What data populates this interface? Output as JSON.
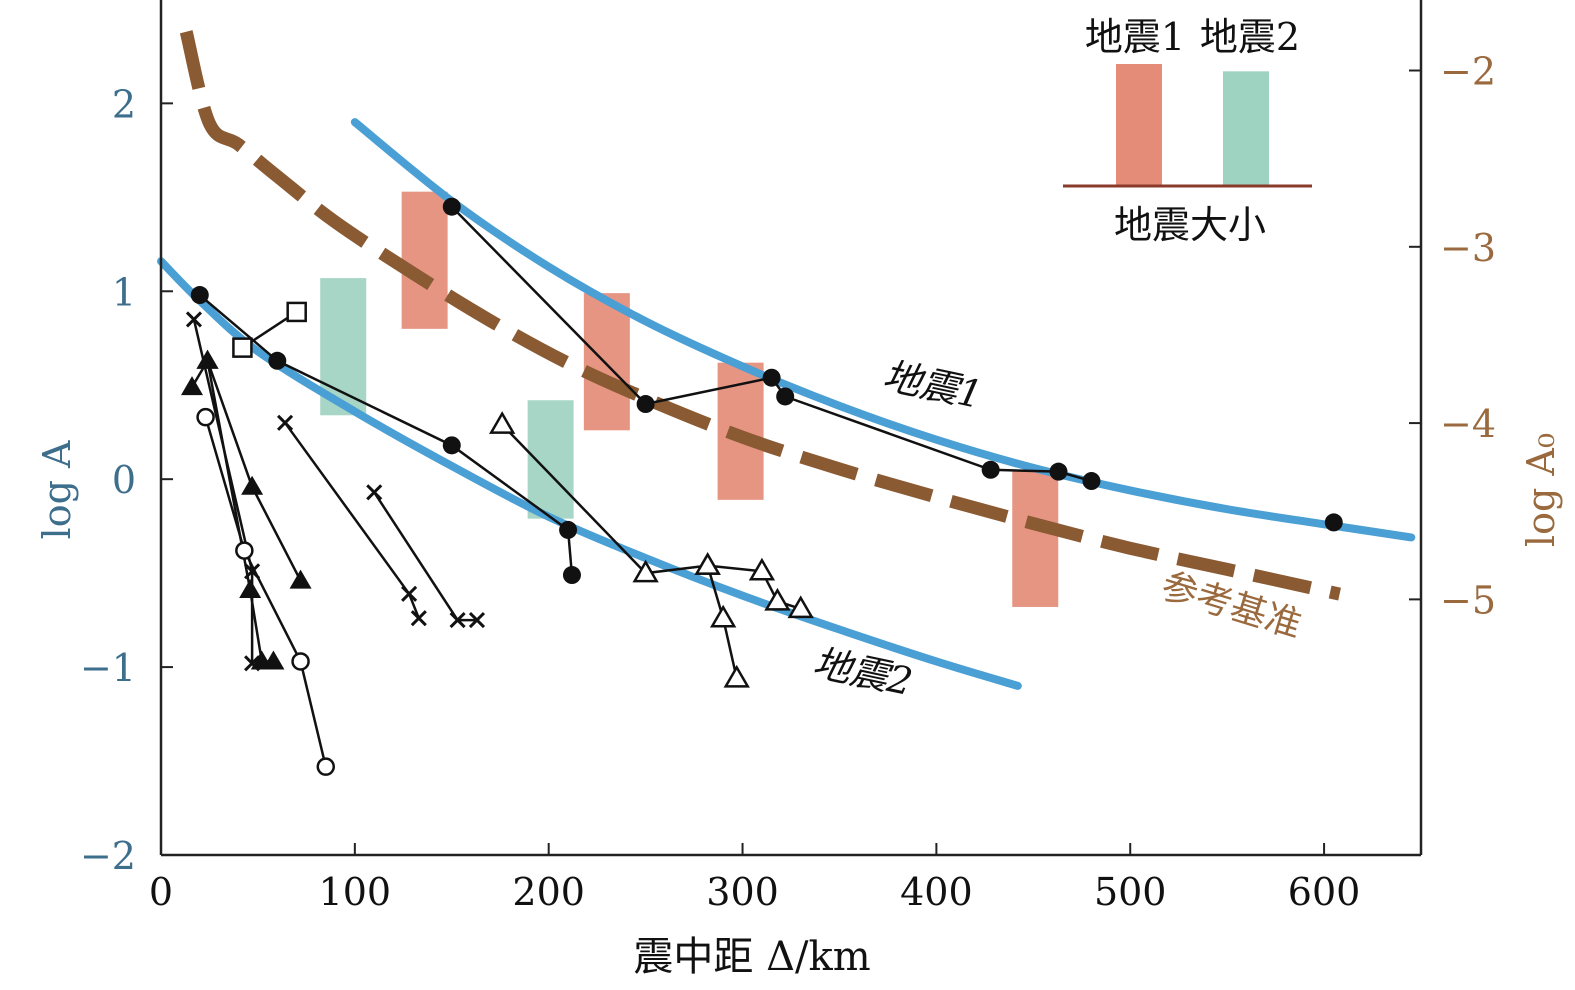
{
  "chart_data": {
    "type": "line",
    "xlabel": "震中距 Δ/km",
    "ylabel_left": "log A",
    "ylabel_right": "log A₀",
    "xlim": [
      0,
      650
    ],
    "ylim": [
      -2,
      2.55
    ],
    "ylim_right": [
      -6.45,
      -1.6
    ],
    "x_ticks": [
      0,
      100,
      200,
      300,
      400,
      500,
      600
    ],
    "x_tick_labels": [
      "0",
      "100",
      "200",
      "300",
      "400",
      "500",
      "600"
    ],
    "y_ticks": [
      -2,
      -1,
      0,
      1,
      2
    ],
    "y_tick_labels": [
      "−2",
      "−1",
      "0",
      "1",
      "2"
    ],
    "y_right_ticks": [
      -5,
      -4,
      -3,
      -2
    ],
    "y_right_tick_labels": [
      "−5",
      "−4",
      "−3",
      "−2"
    ],
    "grid": false,
    "colors": {
      "earthquake_curve": "#4a9fd4",
      "reference_curve": "#8a5a33",
      "left_axis_text": "#3d6e8c",
      "right_axis_text": "#9a6a3e",
      "bar_quake1": "#e58c78",
      "bar_quake2": "#9fd3c1",
      "data_markers": "#111111"
    },
    "curves": [
      {
        "name": "地震1",
        "style": "solid",
        "x": [
          100,
          150,
          200,
          250,
          300,
          350,
          400,
          450,
          500,
          550,
          600,
          645
        ],
        "y": [
          1.9,
          1.48,
          1.13,
          0.84,
          0.6,
          0.39,
          0.21,
          0.06,
          -0.06,
          -0.16,
          -0.24,
          -0.31
        ]
      },
      {
        "name": "地震2",
        "style": "solid",
        "x": [
          0,
          20,
          50,
          100,
          150,
          200,
          250,
          300,
          350,
          400,
          442
        ],
        "y": [
          1.16,
          0.95,
          0.68,
          0.36,
          0.07,
          -0.2,
          -0.42,
          -0.62,
          -0.8,
          -0.97,
          -1.1
        ]
      },
      {
        "name": "参考基准",
        "style": "dashed",
        "axis": "right",
        "x": [
          13,
          25,
          40,
          60,
          90,
          130,
          170,
          210,
          250,
          300,
          350,
          400,
          450,
          500,
          550,
          608
        ],
        "y": [
          -1.78,
          -2.3,
          -2.42,
          -2.6,
          -2.86,
          -3.15,
          -3.42,
          -3.66,
          -3.86,
          -4.08,
          -4.26,
          -4.42,
          -4.57,
          -4.71,
          -4.83,
          -4.97
        ]
      }
    ],
    "measurement_series": [
      {
        "marker": "filled-circle",
        "points": [
          [
            20,
            0.98
          ],
          [
            60,
            0.63
          ],
          [
            150,
            0.18
          ],
          [
            210,
            -0.27
          ],
          [
            212,
            -0.51
          ]
        ]
      },
      {
        "marker": "filled-circle",
        "points": [
          [
            150,
            1.45
          ],
          [
            250,
            0.4
          ],
          [
            315,
            0.54
          ],
          [
            322,
            0.44
          ],
          [
            428,
            0.05
          ],
          [
            463,
            0.04
          ],
          [
            480,
            -0.01
          ]
        ]
      },
      {
        "marker": "filled-circle",
        "points": [
          [
            605,
            -0.23
          ]
        ]
      },
      {
        "marker": "open-square",
        "points": [
          [
            42,
            0.7
          ],
          [
            70,
            0.89
          ]
        ]
      },
      {
        "marker": "filled-triangle",
        "points": [
          [
            16,
            0.49
          ],
          [
            24,
            0.63
          ],
          [
            47,
            -0.04
          ],
          [
            72,
            -0.54
          ]
        ]
      },
      {
        "marker": "filled-triangle",
        "points": [
          [
            24,
            0.63
          ],
          [
            46,
            -0.59
          ],
          [
            52,
            -0.97
          ],
          [
            58,
            -0.97
          ]
        ]
      },
      {
        "marker": "open-circle",
        "points": [
          [
            23,
            0.33
          ],
          [
            43,
            -0.38
          ],
          [
            72,
            -0.97
          ],
          [
            85,
            -1.53
          ]
        ]
      },
      {
        "marker": "cross",
        "points": [
          [
            17,
            0.85
          ],
          [
            47,
            -0.49
          ],
          [
            47,
            -0.98
          ]
        ]
      },
      {
        "marker": "cross",
        "points": [
          [
            64,
            0.3
          ],
          [
            128,
            -0.61
          ],
          [
            133,
            -0.74
          ]
        ]
      },
      {
        "marker": "cross",
        "points": [
          [
            110,
            -0.07
          ],
          [
            153,
            -0.75
          ],
          [
            163,
            -0.75
          ]
        ]
      },
      {
        "marker": "open-triangle",
        "points": [
          [
            176,
            0.29
          ],
          [
            250,
            -0.5
          ],
          [
            282,
            -0.46
          ],
          [
            290,
            -0.74
          ],
          [
            297,
            -1.06
          ]
        ]
      },
      {
        "marker": "open-triangle",
        "points": [
          [
            282,
            -0.46
          ],
          [
            310,
            -0.49
          ],
          [
            318,
            -0.65
          ],
          [
            330,
            -0.69
          ]
        ]
      }
    ],
    "residual_bars": [
      {
        "series": "地震1",
        "x": 136,
        "y_from": 0.8,
        "y_to": 1.53
      },
      {
        "series": "地震1",
        "x": 230,
        "y_from": 0.26,
        "y_to": 0.99
      },
      {
        "series": "地震1",
        "x": 299,
        "y_from": -0.11,
        "y_to": 0.62
      },
      {
        "series": "地震1",
        "x": 451,
        "y_from": -0.68,
        "y_to": 0.05
      },
      {
        "series": "地震2",
        "x": 94,
        "y_from": 0.34,
        "y_to": 1.07
      },
      {
        "series": "地震2",
        "x": 201,
        "y_from": -0.21,
        "y_to": 0.42
      }
    ],
    "annotations": [
      "地震1",
      "地震2",
      "参考基准"
    ],
    "legend": {
      "placement": "top-right",
      "labels": [
        "地震1",
        "地震2"
      ],
      "caption": "地震大小",
      "bar_values": [
        1.0,
        0.94
      ]
    }
  }
}
